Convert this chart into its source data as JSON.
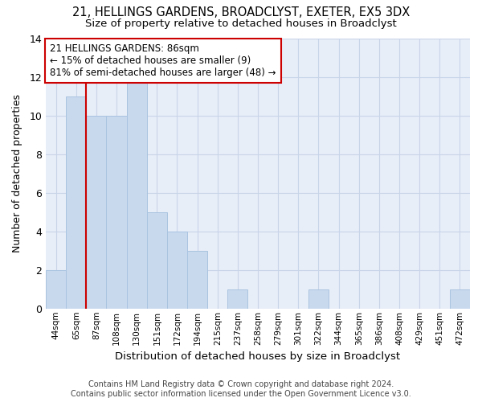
{
  "title1": "21, HELLINGS GARDENS, BROADCLYST, EXETER, EX5 3DX",
  "title2": "Size of property relative to detached houses in Broadclyst",
  "xlabel": "Distribution of detached houses by size in Broadclyst",
  "ylabel": "Number of detached properties",
  "categories": [
    "44sqm",
    "65sqm",
    "87sqm",
    "108sqm",
    "130sqm",
    "151sqm",
    "172sqm",
    "194sqm",
    "215sqm",
    "237sqm",
    "258sqm",
    "279sqm",
    "301sqm",
    "322sqm",
    "344sqm",
    "365sqm",
    "386sqm",
    "408sqm",
    "429sqm",
    "451sqm",
    "472sqm"
  ],
  "values": [
    2,
    11,
    10,
    10,
    12,
    5,
    4,
    3,
    0,
    1,
    0,
    0,
    0,
    1,
    0,
    0,
    0,
    0,
    0,
    0,
    1
  ],
  "bar_color": "#c8d9ee",
  "bar_edge_color": "#aac4e0",
  "subject_line_color": "#cc0000",
  "subject_line_index": 2,
  "ylim": [
    0,
    14
  ],
  "yticks": [
    0,
    2,
    4,
    6,
    8,
    10,
    12,
    14
  ],
  "annotation_text": "21 HELLINGS GARDENS: 86sqm\n← 15% of detached houses are smaller (9)\n81% of semi-detached houses are larger (48) →",
  "annotation_box_facecolor": "#ffffff",
  "annotation_box_edgecolor": "#cc0000",
  "footer": "Contains HM Land Registry data © Crown copyright and database right 2024.\nContains public sector information licensed under the Open Government Licence v3.0.",
  "grid_color": "#c8d4e8",
  "background_color": "#e8eef8"
}
